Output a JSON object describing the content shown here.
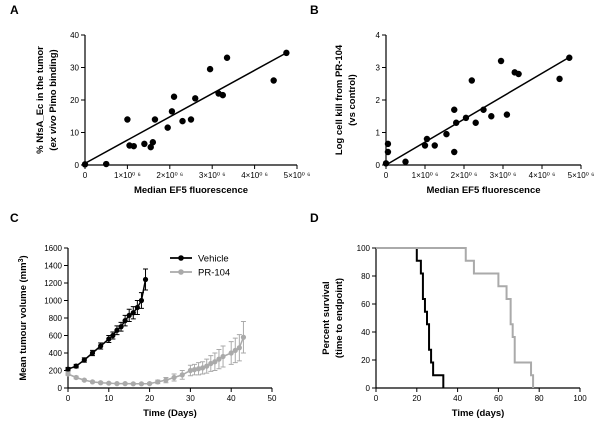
{
  "chart_data": [
    {
      "panel": "A",
      "type": "scatter",
      "xlabel": "Median EF5 fluorescence",
      "ylabel_lines": [
        [
          {
            "text": "% NfsA_Ec in the tumor",
            "italic": false
          }
        ],
        [
          {
            "text": "(",
            "italic": false
          },
          {
            "text": "ex vivo",
            "italic": true
          },
          {
            "text": " Pimo binding)",
            "italic": false
          }
        ]
      ],
      "xlim": [
        0,
        5000000
      ],
      "ylim": [
        0,
        40
      ],
      "xticks": [
        0,
        1000000,
        2000000,
        3000000,
        4000000,
        5000000
      ],
      "xtick_labels": [
        "0",
        "1×10⁰ ⁶",
        "2×10⁰ ⁶",
        "3×10⁰ ⁶",
        "4×10⁰ ⁶",
        "5×10⁰ ⁶"
      ],
      "yticks": [
        0,
        10,
        20,
        30,
        40
      ],
      "ytick_labels": [
        "0",
        "10",
        "20",
        "30",
        "40"
      ],
      "points": [
        [
          0,
          0.2
        ],
        [
          500000,
          0.3
        ],
        [
          1000000,
          14
        ],
        [
          1050000,
          6
        ],
        [
          1150000,
          5.8
        ],
        [
          1400000,
          6.5
        ],
        [
          1550000,
          5.5
        ],
        [
          1600000,
          7
        ],
        [
          1650000,
          14
        ],
        [
          1950000,
          11.5
        ],
        [
          2050000,
          16.5
        ],
        [
          2100000,
          21
        ],
        [
          2300000,
          13.5
        ],
        [
          2500000,
          14
        ],
        [
          2600000,
          20.5
        ],
        [
          2950000,
          29.5
        ],
        [
          3150000,
          22
        ],
        [
          3250000,
          21.5
        ],
        [
          3350000,
          33
        ],
        [
          4450000,
          26
        ],
        [
          4750000,
          34.5
        ]
      ],
      "fit_line": [
        [
          0,
          0.5
        ],
        [
          4750000,
          34.5
        ]
      ]
    },
    {
      "panel": "B",
      "type": "scatter",
      "xlabel": "Median EF5 fluorescence",
      "ylabel_lines": [
        [
          {
            "text": "Log cell kill from PR-104",
            "italic": false
          }
        ],
        [
          {
            "text": "(vs control)",
            "italic": false
          }
        ]
      ],
      "xlim": [
        0,
        5000000
      ],
      "ylim": [
        0,
        4
      ],
      "xticks": [
        0,
        1000000,
        2000000,
        3000000,
        4000000,
        5000000
      ],
      "xtick_labels": [
        "0",
        "1×10⁰ ⁶",
        "2×10⁰ ⁶",
        "3×10⁰ ⁶",
        "4×10⁰ ⁶",
        "5×10⁰ ⁶"
      ],
      "yticks": [
        0,
        1,
        2,
        3,
        4
      ],
      "ytick_labels": [
        "0",
        "1",
        "2",
        "3",
        "4"
      ],
      "points": [
        [
          0,
          0.05
        ],
        [
          50000,
          0.65
        ],
        [
          50000,
          0.4
        ],
        [
          500000,
          0.1
        ],
        [
          1000000,
          0.6
        ],
        [
          1050000,
          0.8
        ],
        [
          1250000,
          0.6
        ],
        [
          1550000,
          0.95
        ],
        [
          1750000,
          1.7
        ],
        [
          1750000,
          0.4
        ],
        [
          1800000,
          1.3
        ],
        [
          2050000,
          1.45
        ],
        [
          2200000,
          2.6
        ],
        [
          2300000,
          1.3
        ],
        [
          2500000,
          1.7
        ],
        [
          2700000,
          1.5
        ],
        [
          2950000,
          3.2
        ],
        [
          3100000,
          1.55
        ],
        [
          3300000,
          2.85
        ],
        [
          3400000,
          2.8
        ],
        [
          4450000,
          2.65
        ],
        [
          4700000,
          3.3
        ]
      ],
      "fit_line": [
        [
          0,
          0.0
        ],
        [
          4750000,
          3.35
        ]
      ]
    },
    {
      "panel": "C",
      "type": "line",
      "xlabel": "Time (Days)",
      "ylabel_lines": [
        [
          {
            "text": "Mean tumour volume (mm",
            "italic": false
          },
          {
            "text": "3",
            "italic": false,
            "sup": true
          },
          {
            "text": ")",
            "italic": false
          }
        ]
      ],
      "xlim": [
        0,
        50
      ],
      "ylim": [
        0,
        1600
      ],
      "xticks": [
        0,
        10,
        20,
        30,
        40,
        50
      ],
      "xtick_labels": [
        "0",
        "10",
        "20",
        "30",
        "40",
        "50"
      ],
      "yticks": [
        0,
        200,
        400,
        600,
        800,
        1000,
        1200,
        1400,
        1600
      ],
      "ytick_labels": [
        "0",
        "200",
        "400",
        "600",
        "800",
        "1000",
        "1200",
        "1400",
        "1600"
      ],
      "legend_position": "top-right",
      "series": [
        {
          "name": "Vehicle",
          "color": "#000000",
          "x": [
            0,
            2,
            4,
            6,
            8,
            10,
            11,
            12,
            13,
            14,
            15,
            16,
            17,
            18,
            19
          ],
          "y": [
            215,
            250,
            320,
            400,
            480,
            560,
            600,
            660,
            700,
            770,
            830,
            860,
            920,
            1000,
            1240
          ],
          "err": [
            20,
            20,
            25,
            30,
            35,
            40,
            40,
            50,
            50,
            60,
            70,
            70,
            80,
            90,
            120
          ]
        },
        {
          "name": "PR-104",
          "color": "#aaaaaa",
          "x": [
            0,
            2,
            4,
            6,
            8,
            10,
            12,
            14,
            16,
            18,
            20,
            22,
            24,
            26,
            28,
            30,
            31,
            32,
            33,
            34,
            35,
            36,
            37,
            38,
            40,
            41,
            42,
            43
          ],
          "y": [
            160,
            120,
            90,
            70,
            60,
            55,
            50,
            50,
            48,
            48,
            50,
            70,
            90,
            120,
            150,
            200,
            210,
            220,
            230,
            250,
            280,
            300,
            330,
            360,
            400,
            430,
            460,
            580
          ],
          "err": [
            15,
            15,
            10,
            10,
            10,
            8,
            8,
            8,
            8,
            8,
            10,
            20,
            30,
            40,
            50,
            60,
            60,
            70,
            70,
            80,
            90,
            100,
            110,
            120,
            130,
            140,
            150,
            180
          ]
        }
      ]
    },
    {
      "panel": "D",
      "type": "line",
      "xlabel": "Time (days)",
      "ylabel_lines": [
        [
          {
            "text": "Percent survival",
            "italic": false
          }
        ],
        [
          {
            "text": "(time to endpoint)",
            "italic": false
          }
        ]
      ],
      "xlim": [
        0,
        100
      ],
      "ylim": [
        0,
        100
      ],
      "xticks": [
        0,
        20,
        40,
        60,
        80,
        100
      ],
      "xtick_labels": [
        "0",
        "20",
        "40",
        "60",
        "80",
        "100"
      ],
      "yticks": [
        0,
        20,
        40,
        60,
        80,
        100
      ],
      "ytick_labels": [
        "0",
        "20",
        "40",
        "60",
        "80",
        "100"
      ],
      "series": [
        {
          "name": "Vehicle",
          "color": "#000000",
          "step": true,
          "x": [
            0,
            20,
            22,
            23,
            24,
            25,
            26,
            27,
            28,
            30,
            33
          ],
          "y": [
            100,
            90.9,
            81.8,
            63.6,
            54.5,
            45.5,
            27.3,
            18.2,
            9.1,
            9.1,
            0
          ]
        },
        {
          "name": "PR-104",
          "color": "#aaaaaa",
          "step": true,
          "x": [
            0,
            41,
            44,
            48,
            56,
            60,
            64,
            66,
            67,
            68,
            76,
            77
          ],
          "y": [
            100,
            100,
            90.9,
            81.8,
            81.8,
            72.7,
            63.6,
            45.5,
            36.4,
            18.2,
            9.1,
            0
          ]
        }
      ]
    }
  ]
}
